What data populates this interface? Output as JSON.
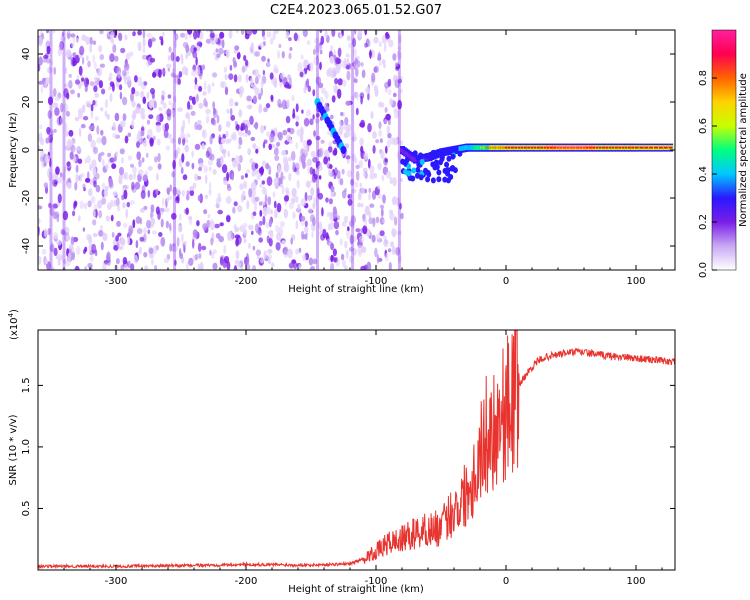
{
  "figure_title": "C2E4.2023.065.01.52.G07",
  "colors": {
    "snr_line": "#e8332e",
    "background": "#ffffff",
    "axis": "#000000",
    "spectrogram_scatter": "#7a1ee8"
  },
  "chart_data": [
    {
      "type": "heatmap",
      "name": "spectrogram",
      "title": "",
      "xlabel": "Height of straight line (km)",
      "ylabel": "Frequency (Hz)",
      "xlim": [
        -360,
        130
      ],
      "ylim": [
        -50,
        50
      ],
      "xticks": [
        -300,
        -200,
        -100,
        0,
        100
      ],
      "yticks": [
        -40,
        -20,
        0,
        20,
        40
      ],
      "colorbar": {
        "label": "Normalized spectral amplitude",
        "range": [
          0,
          1
        ],
        "ticks": [
          "0.0",
          "0.2",
          "0.4",
          "0.6",
          "0.8"
        ],
        "colormap": [
          "#ffffff",
          "#c9a8f5",
          "#7a1ee8",
          "#2a18ff",
          "#00c8ff",
          "#00ff80",
          "#c8ff00",
          "#ffd200",
          "#ff6400",
          "#ff0050",
          "#ff20a0"
        ]
      },
      "noise_region": {
        "x_from": -360,
        "x_to": -80,
        "freq_from": -50,
        "freq_to": 50
      },
      "signal_trace": [
        {
          "x": -80,
          "freq": 0,
          "amp": 0.3
        },
        {
          "x": -70,
          "freq": -4,
          "amp": 0.35
        },
        {
          "x": -60,
          "freq": -3,
          "amp": 0.35
        },
        {
          "x": -50,
          "freq": -1,
          "amp": 0.4
        },
        {
          "x": -40,
          "freq": 0,
          "amp": 0.45
        },
        {
          "x": -30,
          "freq": 1,
          "amp": 0.55
        },
        {
          "x": -20,
          "freq": 1,
          "amp": 0.7
        },
        {
          "x": -10,
          "freq": 1,
          "amp": 0.8
        },
        {
          "x": 0,
          "freq": 1,
          "amp": 0.85
        },
        {
          "x": 20,
          "freq": 1,
          "amp": 0.9
        },
        {
          "x": 40,
          "freq": 1,
          "amp": 0.95
        },
        {
          "x": 60,
          "freq": 1,
          "amp": 0.95
        },
        {
          "x": 80,
          "freq": 1,
          "amp": 0.9
        },
        {
          "x": 100,
          "freq": 1,
          "amp": 0.85
        },
        {
          "x": 130,
          "freq": 1,
          "amp": 0.85
        }
      ],
      "feature_near_minus130": {
        "x_from": -145,
        "x_to": -125,
        "freq_from": 20,
        "freq_to": 0,
        "amp": 0.35
      }
    },
    {
      "type": "line",
      "name": "snr",
      "title": "",
      "xlabel": "Height of straight line (km)",
      "ylabel": "SNR (10 * v/v)",
      "y_multiplier": "(x10",
      "y_multiplier_exp": "4",
      "y_multiplier_close": ")",
      "xlim": [
        -360,
        130
      ],
      "ylim": [
        0,
        19500
      ],
      "xticks": [
        -300,
        -200,
        -100,
        0,
        100
      ],
      "yticks": [
        5000,
        10000,
        15000
      ],
      "ytick_labels": [
        "0.5",
        "1.0",
        "1.5"
      ],
      "grid": false,
      "series": [
        {
          "x": [
            -360,
            -300,
            -250,
            -200,
            -150,
            -120,
            -110,
            -100,
            -90,
            -80,
            -70,
            -60,
            -50,
            -40,
            -35,
            -30,
            -25,
            -20,
            -15,
            -10,
            -5,
            0,
            5,
            10,
            15,
            20,
            25,
            30,
            40,
            50,
            60,
            70,
            80,
            90,
            100,
            110,
            120,
            130
          ],
          "y": [
            300,
            300,
            350,
            450,
            400,
            500,
            900,
            1500,
            2200,
            2500,
            3000,
            3300,
            3400,
            5000,
            5500,
            6500,
            7500,
            9500,
            11000,
            11500,
            12500,
            13000,
            14000,
            15000,
            15800,
            16500,
            17000,
            17300,
            17500,
            17700,
            17700,
            17500,
            17400,
            17300,
            17200,
            17100,
            17000,
            16900
          ]
        }
      ]
    }
  ]
}
